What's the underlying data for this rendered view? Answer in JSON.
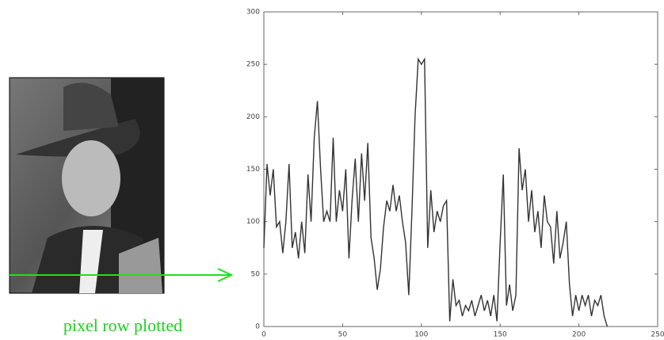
{
  "caption": "pixel row plotted",
  "chart_data": {
    "type": "line",
    "x": [
      0,
      2,
      4,
      6,
      8,
      10,
      12,
      14,
      16,
      18,
      20,
      22,
      24,
      26,
      28,
      30,
      32,
      34,
      36,
      38,
      40,
      42,
      44,
      46,
      48,
      50,
      52,
      54,
      56,
      58,
      60,
      62,
      64,
      66,
      68,
      70,
      72,
      74,
      76,
      78,
      80,
      82,
      84,
      86,
      88,
      90,
      92,
      94,
      96,
      98,
      100,
      102,
      104,
      106,
      108,
      110,
      112,
      114,
      116,
      118,
      120,
      122,
      124,
      126,
      128,
      130,
      132,
      134,
      136,
      138,
      140,
      142,
      144,
      146,
      148,
      150,
      152,
      154,
      156,
      158,
      160,
      162,
      164,
      166,
      168,
      170,
      172,
      174,
      176,
      178,
      180,
      182,
      184,
      186,
      188,
      190,
      192,
      194,
      196,
      198,
      200,
      202,
      204,
      206,
      208,
      210,
      212,
      214,
      216,
      218
    ],
    "values": [
      75,
      155,
      125,
      150,
      95,
      100,
      70,
      100,
      155,
      75,
      90,
      65,
      100,
      70,
      145,
      100,
      180,
      215,
      150,
      100,
      110,
      100,
      180,
      100,
      130,
      110,
      150,
      65,
      120,
      160,
      100,
      165,
      120,
      175,
      85,
      65,
      35,
      55,
      95,
      120,
      110,
      135,
      110,
      125,
      100,
      80,
      30,
      110,
      200,
      255,
      250,
      255,
      75,
      130,
      90,
      110,
      100,
      115,
      120,
      5,
      45,
      20,
      25,
      10,
      20,
      15,
      25,
      10,
      20,
      30,
      15,
      25,
      10,
      30,
      5,
      80,
      145,
      20,
      40,
      15,
      30,
      170,
      130,
      150,
      100,
      130,
      90,
      110,
      75,
      125,
      100,
      95,
      60,
      110,
      65,
      80,
      100,
      40,
      10,
      30,
      15,
      30,
      20,
      30,
      10,
      25,
      20,
      30,
      10,
      0
    ],
    "color": "#333333",
    "xlim": [
      0,
      250
    ],
    "xticks": [
      0,
      50,
      100,
      150,
      200,
      250
    ],
    "ylim": [
      0,
      300
    ],
    "yticks": [
      0,
      50,
      100,
      150,
      200,
      250,
      300
    ]
  }
}
